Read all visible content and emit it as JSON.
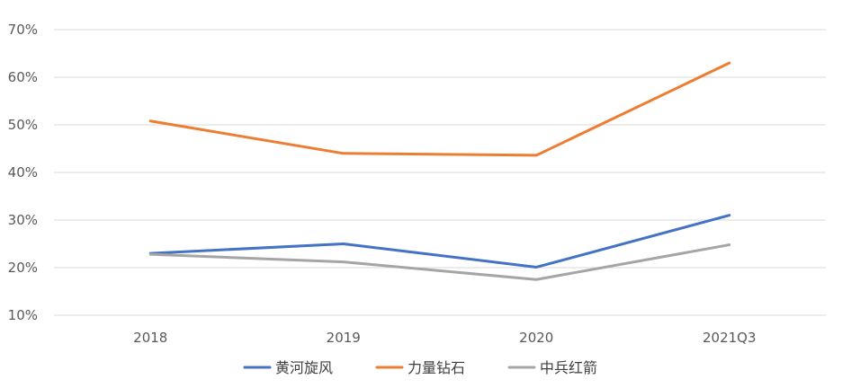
{
  "chart_data": {
    "type": "line",
    "title": "",
    "xlabel": "",
    "ylabel": "",
    "categories": [
      "2018",
      "2019",
      "2020",
      "2021Q3"
    ],
    "y_ticks": [
      "10%",
      "20%",
      "30%",
      "40%",
      "50%",
      "60%",
      "70%"
    ],
    "ylim": [
      10,
      70
    ],
    "grid": true,
    "legend_position": "bottom",
    "series": [
      {
        "name": "黄河旋风",
        "color": "#4472C4",
        "values": [
          23.0,
          25.0,
          20.1,
          31.0
        ]
      },
      {
        "name": "力量钻石",
        "color": "#ED7D31",
        "values": [
          50.8,
          44.0,
          43.6,
          63.0
        ]
      },
      {
        "name": "中兵红箭",
        "color": "#A5A5A5",
        "values": [
          22.8,
          21.2,
          17.5,
          24.8
        ]
      }
    ]
  }
}
